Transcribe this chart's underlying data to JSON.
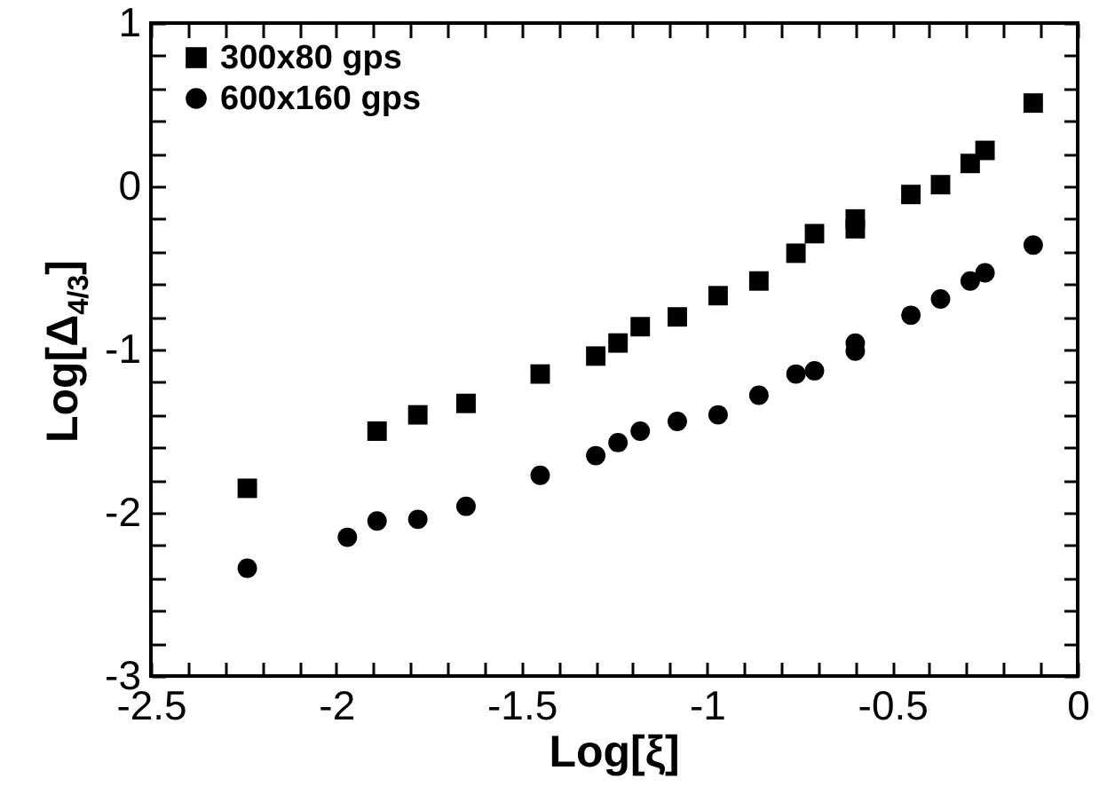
{
  "chart_data": {
    "type": "scatter",
    "xlabel": "Log[ξ]",
    "ylabel": "Log[Δ$_{4/3}$]",
    "legend": "top left",
    "grid": false,
    "xlim": [
      -2.5,
      0
    ],
    "ylim": [
      -3,
      1
    ],
    "xticks": [
      -2.5,
      {
        "value": -2.4,
        "label": null
      },
      {
        "value": -2.3,
        "label": null
      },
      {
        "value": -2.2,
        "label": null
      },
      {
        "value": -2.1,
        "label": null
      },
      -2,
      {
        "value": -1.9,
        "label": null
      },
      {
        "value": -1.8,
        "label": null
      },
      {
        "value": -1.7,
        "label": null
      },
      {
        "value": -1.6,
        "label": null
      },
      -1.5,
      {
        "value": -1.4,
        "label": null
      },
      {
        "value": -1.3,
        "label": null
      },
      {
        "value": -1.2,
        "label": null
      },
      {
        "value": -1.1,
        "label": null
      },
      -1,
      {
        "value": -0.9,
        "label": null
      },
      {
        "value": -0.8,
        "label": null
      },
      {
        "value": -0.7,
        "label": null
      },
      {
        "value": -0.6,
        "label": null
      },
      -0.5,
      {
        "value": -0.4,
        "label": null
      },
      {
        "value": -0.3,
        "label": null
      },
      {
        "value": -0.2,
        "label": null
      },
      {
        "value": -0.1,
        "label": null
      },
      0
    ],
    "yticks": [
      -3,
      {
        "value": -2.8,
        "label": null
      },
      {
        "value": -2.6,
        "label": null
      },
      {
        "value": -2.4,
        "label": null
      },
      {
        "value": -2.2,
        "label": null
      },
      -2,
      {
        "value": -1.8,
        "label": null
      },
      {
        "value": -1.6,
        "label": null
      },
      {
        "value": -1.4,
        "label": null
      },
      {
        "value": -1.2,
        "label": null
      },
      -1,
      {
        "value": -0.8,
        "label": null
      },
      {
        "value": -0.6,
        "label": null
      },
      {
        "value": -0.4,
        "label": null
      },
      {
        "value": -0.2,
        "label": null
      },
      0,
      {
        "value": 0.2,
        "label": null
      },
      {
        "value": 0.4,
        "label": null
      },
      {
        "value": 0.6,
        "label": null
      },
      {
        "value": 0.8,
        "label": null
      },
      1
    ],
    "series": [
      {
        "name": "300x80 gps",
        "color": "#000000",
        "marker": "square",
        "x": [
          -2.24,
          -1.89,
          -1.78,
          -1.65,
          -1.45,
          -1.3,
          -1.24,
          -1.18,
          -1.08,
          -0.97,
          -0.86,
          -0.76,
          -0.71,
          -0.6,
          -0.6,
          -0.45,
          -0.37,
          -0.29,
          -0.25,
          -0.12
        ],
        "values": [
          -1.85,
          -1.5,
          -1.4,
          -1.33,
          -1.15,
          -1.04,
          -0.96,
          -0.86,
          -0.8,
          -0.67,
          -0.58,
          -0.41,
          -0.29,
          -0.2,
          -0.26,
          -0.05,
          0.01,
          0.14,
          0.22,
          0.51
        ]
      },
      {
        "name": "600x160 gps",
        "color": "#000000",
        "marker": "circle",
        "x": [
          -2.24,
          -1.97,
          -1.89,
          -1.78,
          -1.65,
          -1.45,
          -1.3,
          -1.24,
          -1.18,
          -1.08,
          -0.97,
          -0.86,
          -0.76,
          -0.71,
          -0.6,
          -0.6,
          -0.45,
          -0.37,
          -0.29,
          -0.25,
          -0.12
        ],
        "values": [
          -2.34,
          -2.15,
          -2.05,
          -2.04,
          -1.96,
          -1.77,
          -1.65,
          -1.57,
          -1.5,
          -1.44,
          -1.4,
          -1.28,
          -1.15,
          -1.13,
          -0.96,
          -1.01,
          -0.79,
          -0.69,
          -0.58,
          -0.53,
          -0.36
        ]
      }
    ]
  }
}
